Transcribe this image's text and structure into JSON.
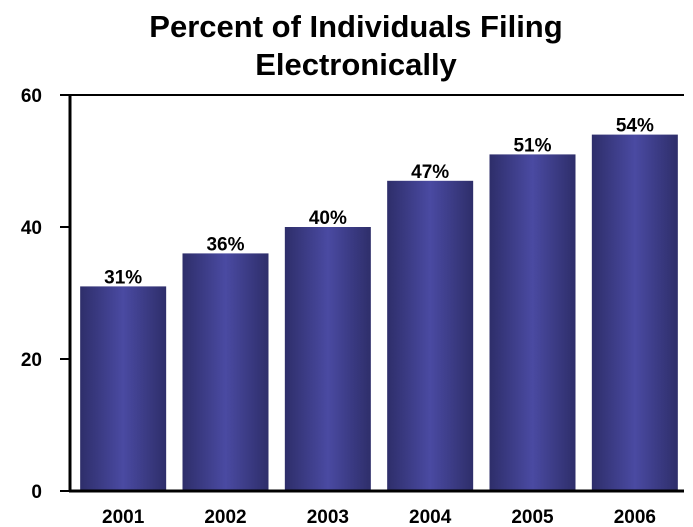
{
  "chart_data": {
    "type": "bar",
    "title_lines": [
      "Percent of Individuals Filing",
      "Electronically"
    ],
    "categories": [
      "2001",
      "2002",
      "2003",
      "2004",
      "2005",
      "2006"
    ],
    "values": [
      31,
      36,
      40,
      47,
      51,
      54
    ],
    "data_labels": [
      "31%",
      "36%",
      "40%",
      "47%",
      "51%",
      "54%"
    ],
    "xlabel": "",
    "ylabel": "",
    "ylim": [
      0,
      60
    ],
    "yticks": [
      0,
      20,
      40,
      60
    ],
    "ytick_labels": [
      "0",
      "20",
      "40",
      "60"
    ],
    "grid": false,
    "legend": "none",
    "colors": {
      "bar_center": "#4a4aa2",
      "bar_edge": "#2e2e6a",
      "axis": "#000000"
    }
  }
}
